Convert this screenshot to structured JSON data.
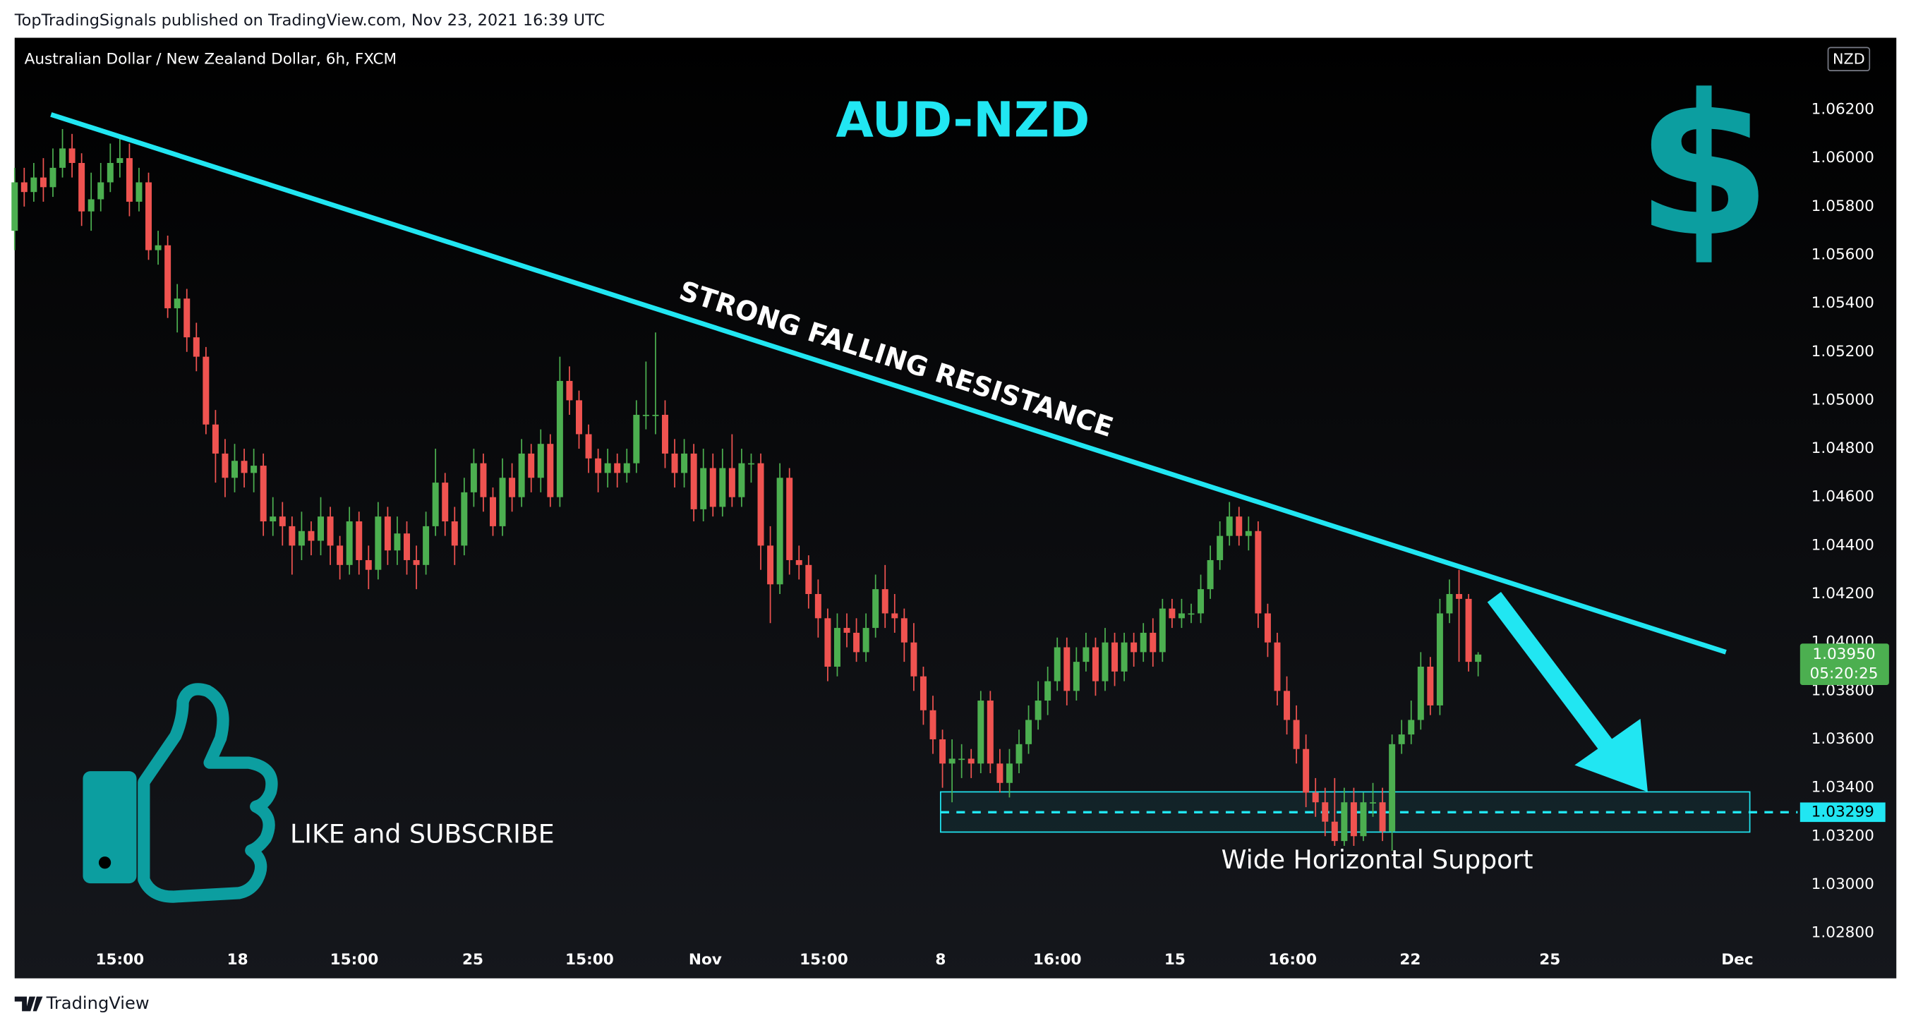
{
  "chart_data": {
    "type": "candlestick",
    "header": "TopTradingSignals published on TradingView.com, Nov 23, 2021 16:39 UTC",
    "subtitle": "Australian Dollar / New Zealand Dollar, 6h, FXCM",
    "currency": "NZD",
    "title": "AUD-NZD",
    "dollar_icon": "$",
    "resistance_label": "STRONG FALLING RESISTANCE",
    "support_label": "Wide Horizontal Support",
    "call_to_action": "LIKE and SUBSCRIBE",
    "brand": "TradingView",
    "up_color": "#4caf50",
    "down_color": "#ef5350",
    "grid": false,
    "xlim": [
      0,
      186.4
    ],
    "ylim": [
      1.02613,
      1.06497
    ],
    "yticks": [
      {
        "value": 1.028,
        "label": "1.02800"
      },
      {
        "value": 1.03,
        "label": "1.03000"
      },
      {
        "value": 1.032,
        "label": "1.03200"
      },
      {
        "value": 1.034,
        "label": "1.03400"
      },
      {
        "value": 1.036,
        "label": "1.03600"
      },
      {
        "value": 1.038,
        "label": "1.03800"
      },
      {
        "value": 1.04,
        "label": "1.04000"
      },
      {
        "value": 1.042,
        "label": "1.04200"
      },
      {
        "value": 1.044,
        "label": "1.04400"
      },
      {
        "value": 1.046,
        "label": "1.04600"
      },
      {
        "value": 1.048,
        "label": "1.04800"
      },
      {
        "value": 1.05,
        "label": "1.05000"
      },
      {
        "value": 1.052,
        "label": "1.05200"
      },
      {
        "value": 1.054,
        "label": "1.05400"
      },
      {
        "value": 1.056,
        "label": "1.05600"
      },
      {
        "value": 1.058,
        "label": "1.05800"
      },
      {
        "value": 1.06,
        "label": "1.06000"
      },
      {
        "value": 1.062,
        "label": "1.06200"
      }
    ],
    "xticks": [
      {
        "value": 11,
        "label": "15:00"
      },
      {
        "value": 23.3,
        "label": "18"
      },
      {
        "value": 35.5,
        "label": "15:00"
      },
      {
        "value": 47.9,
        "label": "25"
      },
      {
        "value": 60.1,
        "label": "15:00"
      },
      {
        "value": 72.2,
        "label": "Nov"
      },
      {
        "value": 84.6,
        "label": "15:00"
      },
      {
        "value": 96.8,
        "label": "8"
      },
      {
        "value": 109,
        "label": "16:00"
      },
      {
        "value": 121.3,
        "label": "15"
      },
      {
        "value": 133.6,
        "label": "16:00"
      },
      {
        "value": 145.9,
        "label": "22"
      },
      {
        "value": 160.5,
        "label": "25"
      },
      {
        "value": 180.1,
        "label": "Dec"
      }
    ],
    "open": [
      1.057,
      1.059,
      1.0586,
      1.0592,
      1.0588,
      1.0596,
      1.0604,
      1.0598,
      1.0578,
      1.0583,
      1.059,
      1.0598,
      1.06,
      1.0582,
      1.059,
      1.0562,
      1.0564,
      1.0538,
      1.0542,
      1.0526,
      1.0518,
      1.049,
      1.0478,
      1.0468,
      1.0475,
      1.047,
      1.0473,
      1.045,
      1.0452,
      1.0448,
      1.044,
      1.0446,
      1.0442,
      1.0452,
      1.044,
      1.0432,
      1.045,
      1.0434,
      1.043,
      1.0452,
      1.0438,
      1.0445,
      1.0434,
      1.0432,
      1.0448,
      1.0466,
      1.045,
      1.044,
      1.0462,
      1.0474,
      1.046,
      1.0448,
      1.0468,
      1.046,
      1.0478,
      1.0468,
      1.0482,
      1.046,
      1.0508,
      1.05,
      1.0486,
      1.0476,
      1.047,
      1.0474,
      1.047,
      1.0474,
      1.0494,
      1.0494,
      1.0494,
      1.0478,
      1.047,
      1.0478,
      1.0455,
      1.0472,
      1.0456,
      1.0472,
      1.046,
      1.0474,
      1.0474,
      1.044,
      1.0424,
      1.0468,
      1.0434,
      1.0432,
      1.042,
      1.041,
      1.039,
      1.0406,
      1.0404,
      1.0396,
      1.0406,
      1.0422,
      1.0412,
      1.041,
      1.04,
      1.0386,
      1.0372,
      1.036,
      1.035,
      1.0352,
      1.0352,
      1.035,
      1.0376,
      1.035,
      1.0342,
      1.035,
      1.0358,
      1.0368,
      1.0376,
      1.0384,
      1.0398,
      1.038,
      1.0392,
      1.0398,
      1.0384,
      1.04,
      1.0388,
      1.04,
      1.0396,
      1.0404,
      1.0396,
      1.0414,
      1.041,
      1.0412,
      1.0412,
      1.0422,
      1.0434,
      1.0444,
      1.0452,
      1.0444,
      1.0446,
      1.0412,
      1.04,
      1.038,
      1.0368,
      1.0356,
      1.0338,
      1.0334,
      1.0326,
      1.0318,
      1.0334,
      1.032,
      1.0334,
      1.0334,
      1.0322,
      1.0358,
      1.0362,
      1.0368,
      1.039,
      1.0374,
      1.0412,
      1.042,
      1.0418,
      1.0392
    ],
    "high": [
      1.0596,
      1.0596,
      1.0598,
      1.06,
      1.0604,
      1.0612,
      1.061,
      1.0602,
      1.0594,
      1.0598,
      1.0606,
      1.0608,
      1.0606,
      1.0596,
      1.0594,
      1.057,
      1.0568,
      1.0548,
      1.0546,
      1.0532,
      1.0522,
      1.0496,
      1.0484,
      1.0482,
      1.048,
      1.048,
      1.0478,
      1.046,
      1.0458,
      1.0452,
      1.0454,
      1.045,
      1.046,
      1.0456,
      1.0444,
      1.0456,
      1.0454,
      1.044,
      1.0458,
      1.0456,
      1.0452,
      1.045,
      1.044,
      1.0454,
      1.048,
      1.047,
      1.0456,
      1.0468,
      1.048,
      1.0478,
      1.0464,
      1.0476,
      1.0474,
      1.0484,
      1.0482,
      1.0488,
      1.0486,
      1.0518,
      1.0514,
      1.0504,
      1.049,
      1.048,
      1.048,
      1.0478,
      1.048,
      1.05,
      1.0516,
      1.0528,
      1.05,
      1.0484,
      1.0484,
      1.0482,
      1.048,
      1.0478,
      1.048,
      1.0486,
      1.048,
      1.0478,
      1.0478,
      1.0448,
      1.0474,
      1.0472,
      1.044,
      1.0436,
      1.0426,
      1.0414,
      1.0412,
      1.0412,
      1.041,
      1.0412,
      1.0428,
      1.0432,
      1.042,
      1.0414,
      1.0408,
      1.039,
      1.0378,
      1.0364,
      1.036,
      1.0358,
      1.0356,
      1.038,
      1.038,
      1.0356,
      1.0356,
      1.0364,
      1.0374,
      1.0384,
      1.039,
      1.0402,
      1.0402,
      1.0398,
      1.0404,
      1.0402,
      1.0406,
      1.0404,
      1.0404,
      1.0404,
      1.0408,
      1.041,
      1.0418,
      1.0418,
      1.0418,
      1.0416,
      1.0428,
      1.044,
      1.045,
      1.0458,
      1.0456,
      1.0452,
      1.045,
      1.0416,
      1.0404,
      1.0386,
      1.0374,
      1.0362,
      1.0344,
      1.034,
      1.0344,
      1.034,
      1.034,
      1.0338,
      1.0342,
      1.034,
      1.0362,
      1.0368,
      1.0376,
      1.0396,
      1.0394,
      1.0418,
      1.0426,
      1.043,
      1.042,
      1.0396
    ],
    "low": [
      1.0562,
      1.058,
      1.0582,
      1.0582,
      1.0584,
      1.0592,
      1.0592,
      1.0572,
      1.057,
      1.0578,
      1.0586,
      1.0592,
      1.0576,
      1.0578,
      1.0558,
      1.0556,
      1.0534,
      1.0528,
      1.052,
      1.0512,
      1.0486,
      1.0466,
      1.046,
      1.0462,
      1.0464,
      1.0462,
      1.0444,
      1.0444,
      1.044,
      1.0428,
      1.0434,
      1.0436,
      1.0436,
      1.0432,
      1.0426,
      1.0428,
      1.0428,
      1.0422,
      1.0426,
      1.0432,
      1.0432,
      1.0428,
      1.0422,
      1.0428,
      1.0444,
      1.0444,
      1.0432,
      1.0436,
      1.0456,
      1.0454,
      1.0444,
      1.0444,
      1.0454,
      1.0456,
      1.0462,
      1.0462,
      1.0456,
      1.0456,
      1.0494,
      1.048,
      1.047,
      1.0462,
      1.0464,
      1.0464,
      1.0466,
      1.047,
      1.0488,
      1.0486,
      1.0472,
      1.0464,
      1.0464,
      1.045,
      1.045,
      1.0452,
      1.0452,
      1.0456,
      1.0456,
      1.0466,
      1.043,
      1.0408,
      1.042,
      1.0428,
      1.0426,
      1.0414,
      1.0402,
      1.0384,
      1.0386,
      1.0398,
      1.0392,
      1.0392,
      1.0402,
      1.0406,
      1.0404,
      1.0392,
      1.038,
      1.0366,
      1.0354,
      1.034,
      1.0334,
      1.0344,
      1.0344,
      1.0346,
      1.0346,
      1.0338,
      1.0336,
      1.0346,
      1.0354,
      1.0364,
      1.037,
      1.038,
      1.0374,
      1.0376,
      1.0388,
      1.0378,
      1.038,
      1.0382,
      1.0384,
      1.039,
      1.0392,
      1.039,
      1.0392,
      1.0406,
      1.0406,
      1.0408,
      1.0408,
      1.0418,
      1.043,
      1.044,
      1.044,
      1.0438,
      1.0406,
      1.0394,
      1.0374,
      1.0362,
      1.035,
      1.0332,
      1.0328,
      1.032,
      1.0316,
      1.0316,
      1.0316,
      1.0318,
      1.0328,
      1.0318,
      1.0314,
      1.0354,
      1.0358,
      1.0364,
      1.037,
      1.037,
      1.0408,
      1.0392,
      1.0388,
      1.0386
    ],
    "close": [
      1.059,
      1.0586,
      1.0592,
      1.0588,
      1.0596,
      1.0604,
      1.0598,
      1.0578,
      1.0583,
      1.059,
      1.0598,
      1.06,
      1.0582,
      1.059,
      1.0562,
      1.0564,
      1.0538,
      1.0542,
      1.0526,
      1.0518,
      1.049,
      1.0478,
      1.0468,
      1.0475,
      1.047,
      1.0473,
      1.045,
      1.0452,
      1.0448,
      1.044,
      1.0446,
      1.0442,
      1.0452,
      1.044,
      1.0432,
      1.045,
      1.0434,
      1.043,
      1.0452,
      1.0438,
      1.0445,
      1.0434,
      1.0432,
      1.0448,
      1.0466,
      1.045,
      1.044,
      1.0462,
      1.0474,
      1.046,
      1.0448,
      1.0468,
      1.046,
      1.0478,
      1.0468,
      1.0482,
      1.046,
      1.0508,
      1.05,
      1.0486,
      1.0476,
      1.047,
      1.0474,
      1.047,
      1.0474,
      1.0494,
      1.0494,
      1.0494,
      1.0478,
      1.047,
      1.0478,
      1.0455,
      1.0472,
      1.0456,
      1.0472,
      1.046,
      1.0474,
      1.0474,
      1.044,
      1.0424,
      1.0468,
      1.0434,
      1.0432,
      1.042,
      1.041,
      1.039,
      1.0406,
      1.0404,
      1.0396,
      1.0406,
      1.0422,
      1.0412,
      1.041,
      1.04,
      1.0386,
      1.0372,
      1.036,
      1.035,
      1.0352,
      1.0352,
      1.035,
      1.0376,
      1.035,
      1.0342,
      1.035,
      1.0358,
      1.0368,
      1.0376,
      1.0384,
      1.0398,
      1.038,
      1.0392,
      1.0398,
      1.0384,
      1.04,
      1.0388,
      1.04,
      1.0396,
      1.0404,
      1.0396,
      1.0414,
      1.041,
      1.0412,
      1.0412,
      1.0422,
      1.0434,
      1.0444,
      1.0452,
      1.0444,
      1.0446,
      1.0412,
      1.04,
      1.038,
      1.0368,
      1.0356,
      1.0338,
      1.0334,
      1.0326,
      1.0318,
      1.0334,
      1.032,
      1.0334,
      1.0334,
      1.0322,
      1.0358,
      1.0362,
      1.0368,
      1.039,
      1.0374,
      1.0412,
      1.042,
      1.0418,
      1.0392,
      1.0395
    ],
    "resistance": {
      "x": [
        3.8,
        178.9
      ],
      "y": [
        1.0618,
        1.0396
      ]
    },
    "support": {
      "x": [
        96.8,
        181.4
      ],
      "top": 1.03383,
      "bottom": 1.03217,
      "level": {
        "value": 1.03299,
        "label": "1.03299"
      }
    },
    "last_price": {
      "value": 1.0395,
      "label": "1.03950"
    },
    "countdown": "05:20:25"
  }
}
